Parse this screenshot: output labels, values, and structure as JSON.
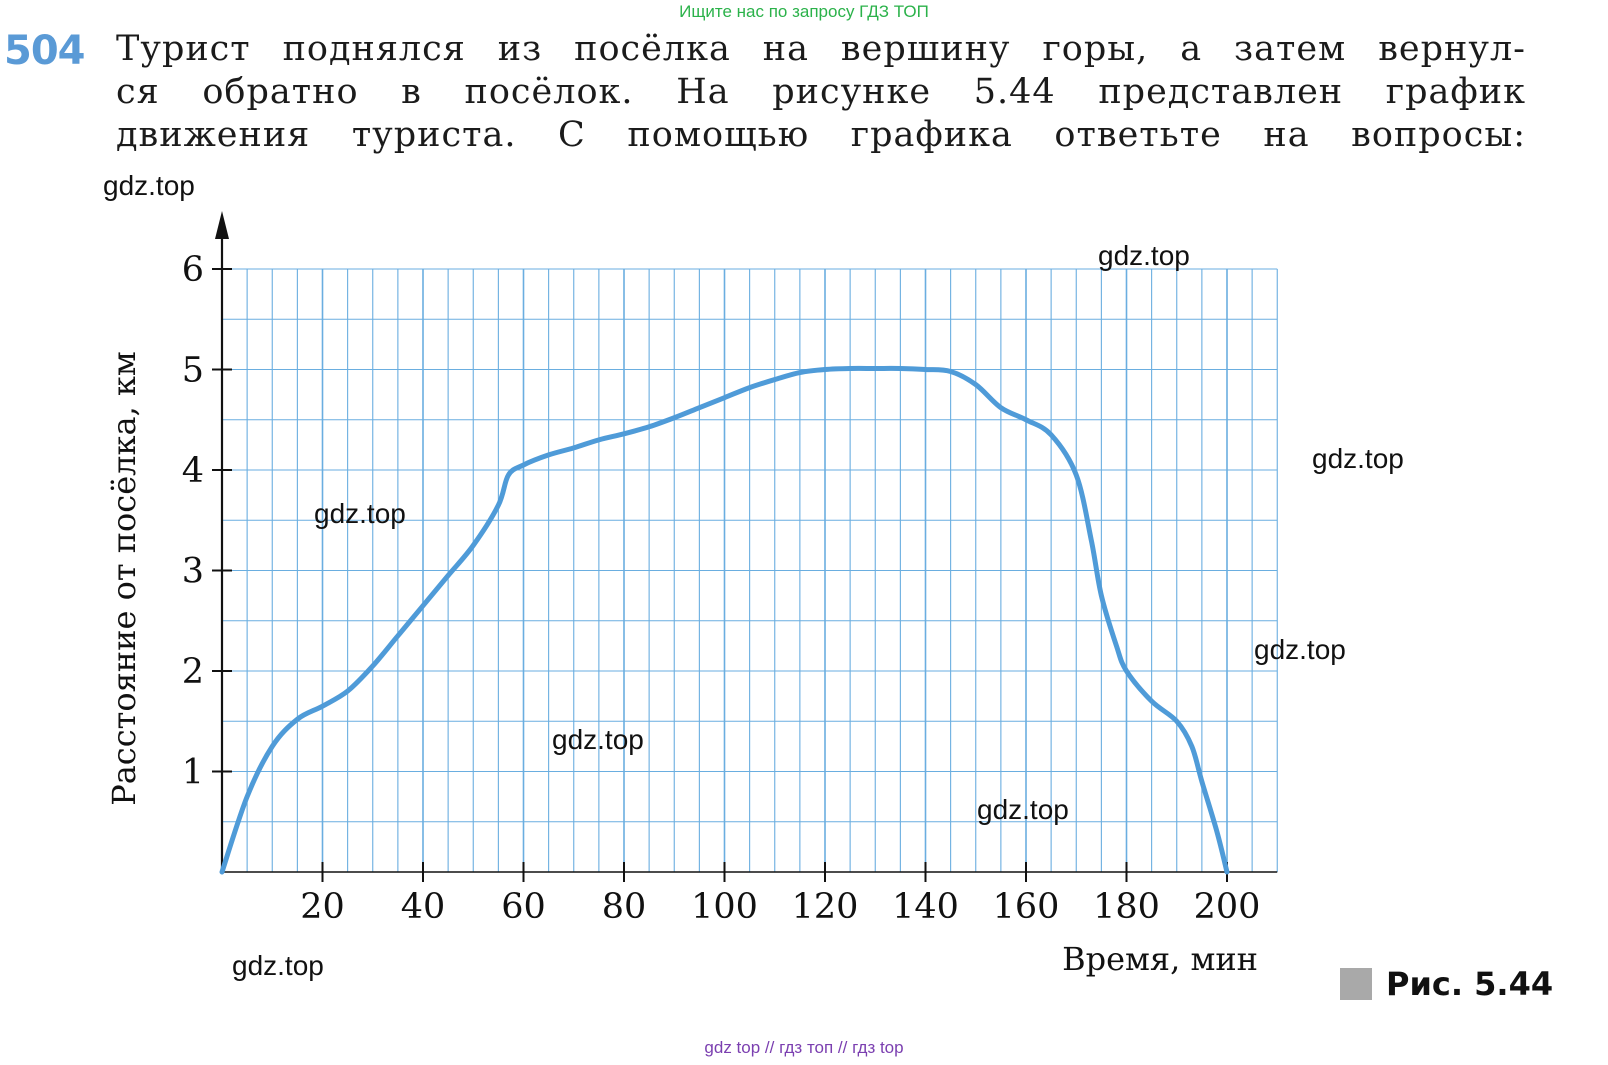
{
  "banner": "Ищите нас по запросу ГДЗ ТОП",
  "problem": {
    "number": "504",
    "lines": [
      "Турист поднялся из посёлка на вершину горы, а затем вернул-",
      "ся обратно в посёлок. На рисунке 5.44 представлен график",
      "движения туриста. С помощью графика ответьте на вопросы:"
    ]
  },
  "watermarks": [
    "gdz.top",
    "gdz.top",
    "gdz.top",
    "gdz.top",
    "gdz.top",
    "gdz.top",
    "gdz.top",
    "gdz.top"
  ],
  "figure": {
    "label": "Рис. 5.44"
  },
  "footer": "gdz top  //  гдз топ  //  гдз top",
  "colors": {
    "grid": "#6aaee0",
    "curve": "#4f9bd8",
    "number": "#5a9ad6",
    "banner": "#2bb24a",
    "footer": "#7b3fb0"
  },
  "chart_data": {
    "type": "line",
    "xlabel": "Время, мин",
    "ylabel": "Расстояние от посёлка, км",
    "xlim": [
      0,
      210
    ],
    "ylim": [
      0,
      6
    ],
    "x_ticks": [
      20,
      40,
      60,
      80,
      100,
      120,
      140,
      160,
      180,
      200
    ],
    "y_ticks": [
      1,
      2,
      3,
      4,
      5,
      6
    ],
    "grid": true,
    "series": [
      {
        "x": [
          0,
          5,
          10,
          15,
          20,
          25,
          30,
          35,
          40,
          45,
          50,
          55,
          57,
          60,
          65,
          70,
          75,
          80,
          85,
          90,
          95,
          100,
          105,
          110,
          115,
          120,
          125,
          130,
          135,
          140,
          145,
          150,
          155,
          160,
          165,
          170,
          173,
          175,
          178,
          180,
          185,
          190,
          193,
          195,
          198,
          200
        ],
        "y": [
          0,
          0.75,
          1.25,
          1.52,
          1.65,
          1.8,
          2.05,
          2.35,
          2.65,
          2.95,
          3.25,
          3.65,
          3.95,
          4.05,
          4.15,
          4.22,
          4.3,
          4.36,
          4.43,
          4.52,
          4.62,
          4.72,
          4.82,
          4.9,
          4.97,
          5.0,
          5.01,
          5.01,
          5.01,
          5.0,
          4.98,
          4.85,
          4.62,
          4.5,
          4.35,
          3.95,
          3.3,
          2.75,
          2.25,
          2.0,
          1.7,
          1.5,
          1.25,
          0.9,
          0.4,
          0
        ]
      }
    ]
  }
}
